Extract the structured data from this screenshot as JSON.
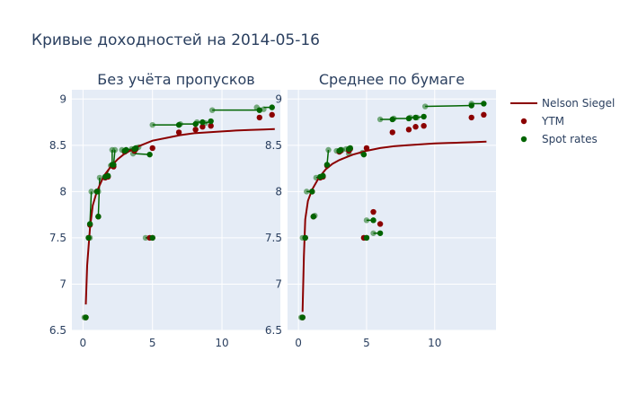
{
  "chart_data": {
    "type": "scatter",
    "title": "Кривые доходностей на 2014-05-16",
    "colors": {
      "ns": "#8b0000",
      "ytm": "#8b0000",
      "spot": "#006400",
      "plot_bg": "#e5ecf6",
      "grid": "#ffffff"
    },
    "legend": {
      "placement": "right",
      "entries": [
        "Nelson Siegel",
        "YTM",
        "Spot rates"
      ]
    },
    "ylim": [
      6.5,
      9.1
    ],
    "yticks": [
      6.5,
      7,
      7.5,
      8,
      8.5,
      9
    ],
    "ytick_labels": [
      "6.5",
      "7",
      "7.5",
      "8",
      "8.5",
      "9"
    ],
    "xticks": [
      0,
      5,
      10
    ],
    "xtick_labels": [
      "0",
      "5",
      "10"
    ],
    "panels": [
      {
        "subtitle": "Без учёта пропусков",
        "xlim": [
          -0.8,
          14.2
        ],
        "nelson_siegel": {
          "x": [
            0.2,
            0.3,
            0.5,
            0.7,
            1.0,
            1.5,
            2.0,
            2.5,
            3.0,
            3.5,
            4.0,
            5.0,
            6.0,
            7.0,
            8.0,
            9.0,
            10.0,
            11.0,
            12.0,
            13.0,
            13.8
          ],
          "y": [
            6.78,
            7.2,
            7.6,
            7.85,
            8.0,
            8.17,
            8.27,
            8.35,
            8.41,
            8.45,
            8.49,
            8.55,
            8.58,
            8.61,
            8.63,
            8.64,
            8.65,
            8.66,
            8.665,
            8.67,
            8.675
          ]
        },
        "ytm": {
          "x": [
            0.2,
            0.4,
            0.5,
            1.0,
            1.1,
            1.6,
            1.8,
            2.1,
            2.2,
            3.0,
            3.1,
            3.7,
            3.8,
            4.8,
            5.0,
            5.0,
            6.9,
            8.1,
            8.6,
            9.2,
            12.7,
            13.6
          ],
          "y": [
            6.64,
            7.5,
            7.64,
            8.0,
            7.73,
            8.15,
            8.16,
            8.28,
            8.27,
            8.43,
            8.44,
            8.44,
            8.46,
            7.5,
            7.5,
            8.47,
            8.64,
            8.67,
            8.7,
            8.71,
            8.8,
            8.83
          ]
        },
        "spot": {
          "x": [
            0.2,
            0.4,
            0.5,
            1.0,
            1.1,
            1.6,
            1.8,
            2.1,
            2.2,
            3.0,
            3.1,
            3.7,
            3.8,
            4.8,
            5.0,
            6.9,
            8.1,
            8.6,
            9.2,
            12.7,
            13.6
          ],
          "y": [
            6.64,
            7.5,
            7.65,
            8.0,
            7.73,
            8.16,
            8.17,
            8.29,
            8.29,
            8.44,
            8.45,
            8.46,
            8.47,
            8.4,
            7.5,
            8.72,
            8.73,
            8.75,
            8.76,
            8.88,
            8.91
          ]
        },
        "spot_shadow": {
          "x": [
            0.1,
            0.5,
            0.6,
            1.1,
            1.2,
            2.0,
            1.7,
            2.1,
            2.3,
            2.8,
            3.5,
            3.6,
            4.0,
            4.5,
            5.0,
            7.0,
            8.2,
            8.8,
            9.3,
            12.5,
            13.0
          ],
          "y": [
            6.64,
            7.5,
            8.0,
            8.0,
            8.15,
            8.28,
            8.16,
            8.45,
            8.45,
            8.45,
            8.46,
            8.41,
            8.48,
            7.5,
            8.72,
            8.73,
            8.75,
            8.74,
            8.88,
            8.91,
            8.89
          ]
        },
        "connectors": [
          [
            0.2,
            6.64,
            0.1,
            6.64
          ],
          [
            0.4,
            7.5,
            0.5,
            7.5
          ],
          [
            0.5,
            7.65,
            0.6,
            8.0
          ],
          [
            1.0,
            8.0,
            1.1,
            8.0
          ],
          [
            1.1,
            7.73,
            1.2,
            8.15
          ],
          [
            1.6,
            8.16,
            2.0,
            8.28
          ],
          [
            1.8,
            8.17,
            1.7,
            8.16
          ],
          [
            2.1,
            8.29,
            2.1,
            8.45
          ],
          [
            2.2,
            8.29,
            2.3,
            8.45
          ],
          [
            3.0,
            8.44,
            2.8,
            8.45
          ],
          [
            3.1,
            8.45,
            3.5,
            8.46
          ],
          [
            3.7,
            8.46,
            3.6,
            8.41
          ],
          [
            3.8,
            8.47,
            4.0,
            8.48
          ],
          [
            4.8,
            8.4,
            3.7,
            8.41
          ],
          [
            5.0,
            7.5,
            4.5,
            7.5
          ],
          [
            6.9,
            8.72,
            5.0,
            8.72
          ],
          [
            8.1,
            8.73,
            7.0,
            8.73
          ],
          [
            8.6,
            8.75,
            8.2,
            8.75
          ],
          [
            9.2,
            8.76,
            8.8,
            8.74
          ],
          [
            12.7,
            8.88,
            9.3,
            8.88
          ],
          [
            13.6,
            8.91,
            13.0,
            8.91
          ]
        ]
      },
      {
        "subtitle": "Среднее по бумаге",
        "xlim": [
          -0.8,
          14.5
        ],
        "nelson_siegel": {
          "x": [
            0.3,
            0.4,
            0.5,
            0.7,
            1.0,
            1.5,
            2.0,
            2.5,
            3.0,
            3.5,
            4.0,
            5.0,
            6.0,
            7.0,
            8.0,
            9.0,
            10.0,
            11.0,
            12.0,
            13.0,
            13.8
          ],
          "y": [
            6.7,
            7.3,
            7.7,
            7.9,
            8.02,
            8.15,
            8.24,
            8.3,
            8.34,
            8.37,
            8.4,
            8.44,
            8.47,
            8.49,
            8.5,
            8.51,
            8.52,
            8.525,
            8.53,
            8.535,
            8.54
          ]
        },
        "ytm": {
          "x": [
            0.3,
            0.5,
            1.0,
            1.1,
            1.6,
            1.8,
            2.1,
            3.0,
            3.1,
            3.7,
            3.8,
            4.8,
            5.0,
            5.0,
            5.5,
            6.0,
            6.9,
            8.1,
            8.6,
            9.2,
            12.7,
            13.6
          ],
          "y": [
            6.64,
            7.5,
            8.0,
            7.73,
            8.15,
            8.16,
            8.28,
            8.43,
            8.44,
            8.44,
            8.46,
            7.5,
            7.5,
            8.47,
            7.78,
            7.65,
            8.64,
            8.67,
            8.7,
            8.71,
            8.8,
            8.83
          ]
        },
        "spot": {
          "x": [
            0.3,
            0.5,
            1.0,
            1.1,
            1.6,
            1.8,
            2.1,
            3.0,
            3.1,
            3.7,
            3.8,
            4.8,
            5.0,
            5.5,
            6.0,
            6.9,
            8.1,
            8.6,
            9.2,
            12.7,
            13.6
          ],
          "y": [
            6.64,
            7.5,
            8.0,
            7.73,
            8.16,
            8.17,
            8.29,
            8.44,
            8.45,
            8.46,
            8.47,
            8.4,
            7.5,
            7.69,
            7.55,
            8.78,
            8.79,
            8.8,
            8.81,
            8.93,
            8.95
          ]
        },
        "spot_shadow": {
          "x": [
            0.2,
            0.3,
            0.6,
            1.2,
            1.3,
            1.7,
            2.2,
            2.8,
            3.2,
            3.5,
            3.7,
            4.7,
            4.8,
            5.0,
            5.5,
            6.0,
            7.0,
            8.2,
            8.7,
            9.3,
            12.7
          ],
          "y": [
            6.64,
            7.5,
            8.0,
            7.74,
            8.15,
            8.16,
            8.45,
            8.44,
            8.45,
            8.46,
            8.41,
            8.42,
            7.5,
            7.69,
            7.55,
            8.78,
            8.79,
            8.8,
            8.8,
            8.92,
            8.95
          ]
        },
        "connectors": [
          [
            0.3,
            6.64,
            0.2,
            6.64
          ],
          [
            0.5,
            7.5,
            0.3,
            7.5
          ],
          [
            1.0,
            8.0,
            0.6,
            8.0
          ],
          [
            1.1,
            7.73,
            1.2,
            7.74
          ],
          [
            1.6,
            8.16,
            1.3,
            8.15
          ],
          [
            1.8,
            8.17,
            1.7,
            8.16
          ],
          [
            2.1,
            8.29,
            2.2,
            8.45
          ],
          [
            3.0,
            8.44,
            2.8,
            8.44
          ],
          [
            3.1,
            8.45,
            3.2,
            8.45
          ],
          [
            3.7,
            8.46,
            3.5,
            8.46
          ],
          [
            3.8,
            8.47,
            3.7,
            8.41
          ],
          [
            4.8,
            8.4,
            4.7,
            8.42
          ],
          [
            5.0,
            7.5,
            4.8,
            7.5
          ],
          [
            5.5,
            7.69,
            5.0,
            7.69
          ],
          [
            6.0,
            7.55,
            5.5,
            7.55
          ],
          [
            6.9,
            8.78,
            6.0,
            8.78
          ],
          [
            8.1,
            8.79,
            7.0,
            8.79
          ],
          [
            8.6,
            8.8,
            8.2,
            8.8
          ],
          [
            9.2,
            8.81,
            8.7,
            8.8
          ],
          [
            12.7,
            8.93,
            9.3,
            8.92
          ],
          [
            13.6,
            8.95,
            12.7,
            8.95
          ]
        ]
      }
    ]
  }
}
